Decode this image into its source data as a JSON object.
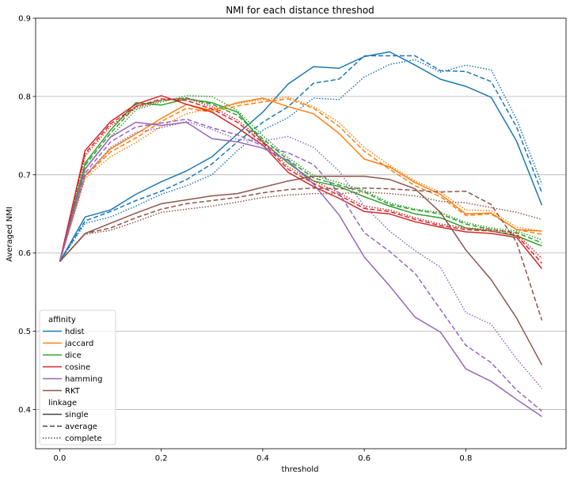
{
  "chart_data": {
    "type": "line",
    "title": "NMI for each distance threshod",
    "xlabel": "threshold",
    "ylabel": "Averaged NMI",
    "xlim": [
      -0.0475,
      0.9975
    ],
    "ylim": [
      0.35,
      0.9
    ],
    "xticks": [
      "0.0",
      "0.2",
      "0.4",
      "0.6",
      "0.8"
    ],
    "yticks": [
      "0.4",
      "0.5",
      "0.6",
      "0.7",
      "0.8",
      "0.9"
    ],
    "grid": "horizontal",
    "x": [
      0.0,
      0.05,
      0.1,
      0.15,
      0.2,
      0.25,
      0.3,
      0.35,
      0.4,
      0.45,
      0.5,
      0.55,
      0.6,
      0.65,
      0.7,
      0.75,
      0.8,
      0.85,
      0.9,
      0.95
    ],
    "legend": {
      "position": "lower-left",
      "affinity_title": "affinity",
      "linkage_title": "linkage",
      "affinity": [
        {
          "name": "hdist",
          "color": "#1f77b4"
        },
        {
          "name": "jaccard",
          "color": "#ff7f0e"
        },
        {
          "name": "dice",
          "color": "#2ca02c"
        },
        {
          "name": "cosine",
          "color": "#d62728"
        },
        {
          "name": "hamming",
          "color": "#9467bd"
        },
        {
          "name": "RKT",
          "color": "#8c564b"
        }
      ],
      "linkage": [
        {
          "name": "single",
          "dash": "solid"
        },
        {
          "name": "average",
          "dash": "dashed"
        },
        {
          "name": "complete",
          "dash": "dotted"
        }
      ]
    },
    "series": [
      {
        "affinity": "hdist",
        "linkage": "single",
        "color": "#1f77b4",
        "dash": "solid",
        "values": [
          0.589,
          0.646,
          0.655,
          0.675,
          0.691,
          0.705,
          0.723,
          0.752,
          0.78,
          0.816,
          0.838,
          0.836,
          0.851,
          0.857,
          0.84,
          0.822,
          0.813,
          0.799,
          0.743,
          0.661
        ]
      },
      {
        "affinity": "hdist",
        "linkage": "average",
        "color": "#1f77b4",
        "dash": "dashed",
        "values": [
          0.589,
          0.641,
          0.653,
          0.667,
          0.679,
          0.694,
          0.714,
          0.742,
          0.767,
          0.787,
          0.817,
          0.822,
          0.852,
          0.852,
          0.852,
          0.833,
          0.832,
          0.819,
          0.761,
          0.677
        ]
      },
      {
        "affinity": "hdist",
        "linkage": "complete",
        "color": "#1f77b4",
        "dash": "dotted",
        "values": [
          0.589,
          0.638,
          0.646,
          0.66,
          0.675,
          0.686,
          0.7,
          0.731,
          0.757,
          0.773,
          0.798,
          0.796,
          0.825,
          0.841,
          0.847,
          0.831,
          0.84,
          0.834,
          0.771,
          0.688
        ]
      },
      {
        "affinity": "jaccard",
        "linkage": "single",
        "color": "#ff7f0e",
        "dash": "solid",
        "values": [
          0.589,
          0.699,
          0.733,
          0.752,
          0.772,
          0.79,
          0.782,
          0.792,
          0.798,
          0.787,
          0.778,
          0.753,
          0.72,
          0.71,
          0.69,
          0.675,
          0.65,
          0.651,
          0.63,
          0.628
        ]
      },
      {
        "affinity": "jaccard",
        "linkage": "average",
        "color": "#ff7f0e",
        "dash": "dashed",
        "values": [
          0.589,
          0.698,
          0.729,
          0.747,
          0.768,
          0.785,
          0.78,
          0.788,
          0.793,
          0.797,
          0.785,
          0.762,
          0.73,
          0.707,
          0.686,
          0.672,
          0.648,
          0.65,
          0.63,
          0.624
        ]
      },
      {
        "affinity": "jaccard",
        "linkage": "complete",
        "color": "#ff7f0e",
        "dash": "dotted",
        "values": [
          0.589,
          0.695,
          0.723,
          0.741,
          0.762,
          0.778,
          0.785,
          0.791,
          0.796,
          0.799,
          0.787,
          0.767,
          0.735,
          0.712,
          0.692,
          0.678,
          0.655,
          0.654,
          0.633,
          0.628
        ]
      },
      {
        "affinity": "dice",
        "linkage": "single",
        "color": "#2ca02c",
        "dash": "solid",
        "values": [
          0.589,
          0.715,
          0.757,
          0.792,
          0.789,
          0.797,
          0.792,
          0.78,
          0.742,
          0.715,
          0.692,
          0.685,
          0.672,
          0.66,
          0.65,
          0.645,
          0.632,
          0.628,
          0.622,
          0.609
        ]
      },
      {
        "affinity": "dice",
        "linkage": "average",
        "color": "#2ca02c",
        "dash": "dashed",
        "values": [
          0.589,
          0.712,
          0.753,
          0.788,
          0.795,
          0.798,
          0.79,
          0.776,
          0.746,
          0.719,
          0.696,
          0.687,
          0.678,
          0.662,
          0.655,
          0.65,
          0.637,
          0.63,
          0.626,
          0.613
        ]
      },
      {
        "affinity": "dice",
        "linkage": "complete",
        "color": "#2ca02c",
        "dash": "dotted",
        "values": [
          0.589,
          0.708,
          0.748,
          0.783,
          0.793,
          0.801,
          0.8,
          0.782,
          0.75,
          0.722,
          0.699,
          0.69,
          0.68,
          0.664,
          0.656,
          0.652,
          0.639,
          0.632,
          0.628,
          0.617
        ]
      },
      {
        "affinity": "cosine",
        "linkage": "single",
        "color": "#d62728",
        "dash": "solid",
        "values": [
          0.589,
          0.731,
          0.768,
          0.79,
          0.801,
          0.79,
          0.78,
          0.76,
          0.738,
          0.703,
          0.685,
          0.67,
          0.653,
          0.65,
          0.64,
          0.633,
          0.627,
          0.625,
          0.62,
          0.58
        ]
      },
      {
        "affinity": "cosine",
        "linkage": "average",
        "color": "#d62728",
        "dash": "dashed",
        "values": [
          0.589,
          0.727,
          0.765,
          0.787,
          0.797,
          0.795,
          0.784,
          0.767,
          0.741,
          0.707,
          0.689,
          0.674,
          0.657,
          0.653,
          0.643,
          0.635,
          0.63,
          0.628,
          0.623,
          0.587
        ]
      },
      {
        "affinity": "cosine",
        "linkage": "complete",
        "color": "#d62728",
        "dash": "dotted",
        "values": [
          0.589,
          0.724,
          0.762,
          0.785,
          0.795,
          0.798,
          0.787,
          0.77,
          0.744,
          0.71,
          0.692,
          0.677,
          0.66,
          0.655,
          0.645,
          0.637,
          0.632,
          0.63,
          0.625,
          0.593
        ]
      },
      {
        "affinity": "hamming",
        "linkage": "single",
        "color": "#9467bd",
        "dash": "solid",
        "values": [
          0.589,
          0.707,
          0.748,
          0.767,
          0.763,
          0.767,
          0.746,
          0.742,
          0.734,
          0.718,
          0.688,
          0.649,
          0.595,
          0.558,
          0.518,
          0.499,
          0.452,
          0.436,
          0.413,
          0.391
        ]
      },
      {
        "affinity": "hamming",
        "linkage": "average",
        "color": "#9467bd",
        "dash": "dashed",
        "values": [
          0.589,
          0.702,
          0.742,
          0.761,
          0.766,
          0.771,
          0.76,
          0.751,
          0.737,
          0.728,
          0.713,
          0.677,
          0.626,
          0.602,
          0.574,
          0.528,
          0.482,
          0.46,
          0.425,
          0.398
        ]
      },
      {
        "affinity": "hamming",
        "linkage": "complete",
        "color": "#9467bd",
        "dash": "dotted",
        "values": [
          0.589,
          0.698,
          0.735,
          0.754,
          0.76,
          0.768,
          0.758,
          0.745,
          0.743,
          0.749,
          0.735,
          0.705,
          0.66,
          0.628,
          0.603,
          0.582,
          0.524,
          0.509,
          0.465,
          0.427
        ]
      },
      {
        "affinity": "RKT",
        "linkage": "single",
        "color": "#8c564b",
        "dash": "solid",
        "values": [
          0.589,
          0.625,
          0.638,
          0.651,
          0.663,
          0.668,
          0.673,
          0.676,
          0.684,
          0.692,
          0.698,
          0.698,
          0.698,
          0.694,
          0.682,
          0.652,
          0.604,
          0.566,
          0.517,
          0.457
        ]
      },
      {
        "affinity": "RKT",
        "linkage": "average",
        "color": "#8c564b",
        "dash": "dashed",
        "values": [
          0.589,
          0.625,
          0.632,
          0.645,
          0.656,
          0.663,
          0.667,
          0.671,
          0.677,
          0.681,
          0.683,
          0.682,
          0.683,
          0.682,
          0.68,
          0.678,
          0.679,
          0.662,
          0.614,
          0.514
        ]
      },
      {
        "affinity": "RKT",
        "linkage": "complete",
        "color": "#8c564b",
        "dash": "dotted",
        "values": [
          0.589,
          0.624,
          0.629,
          0.64,
          0.652,
          0.656,
          0.66,
          0.665,
          0.671,
          0.674,
          0.676,
          0.676,
          0.678,
          0.676,
          0.673,
          0.666,
          0.664,
          0.658,
          0.652,
          0.643
        ]
      }
    ]
  }
}
